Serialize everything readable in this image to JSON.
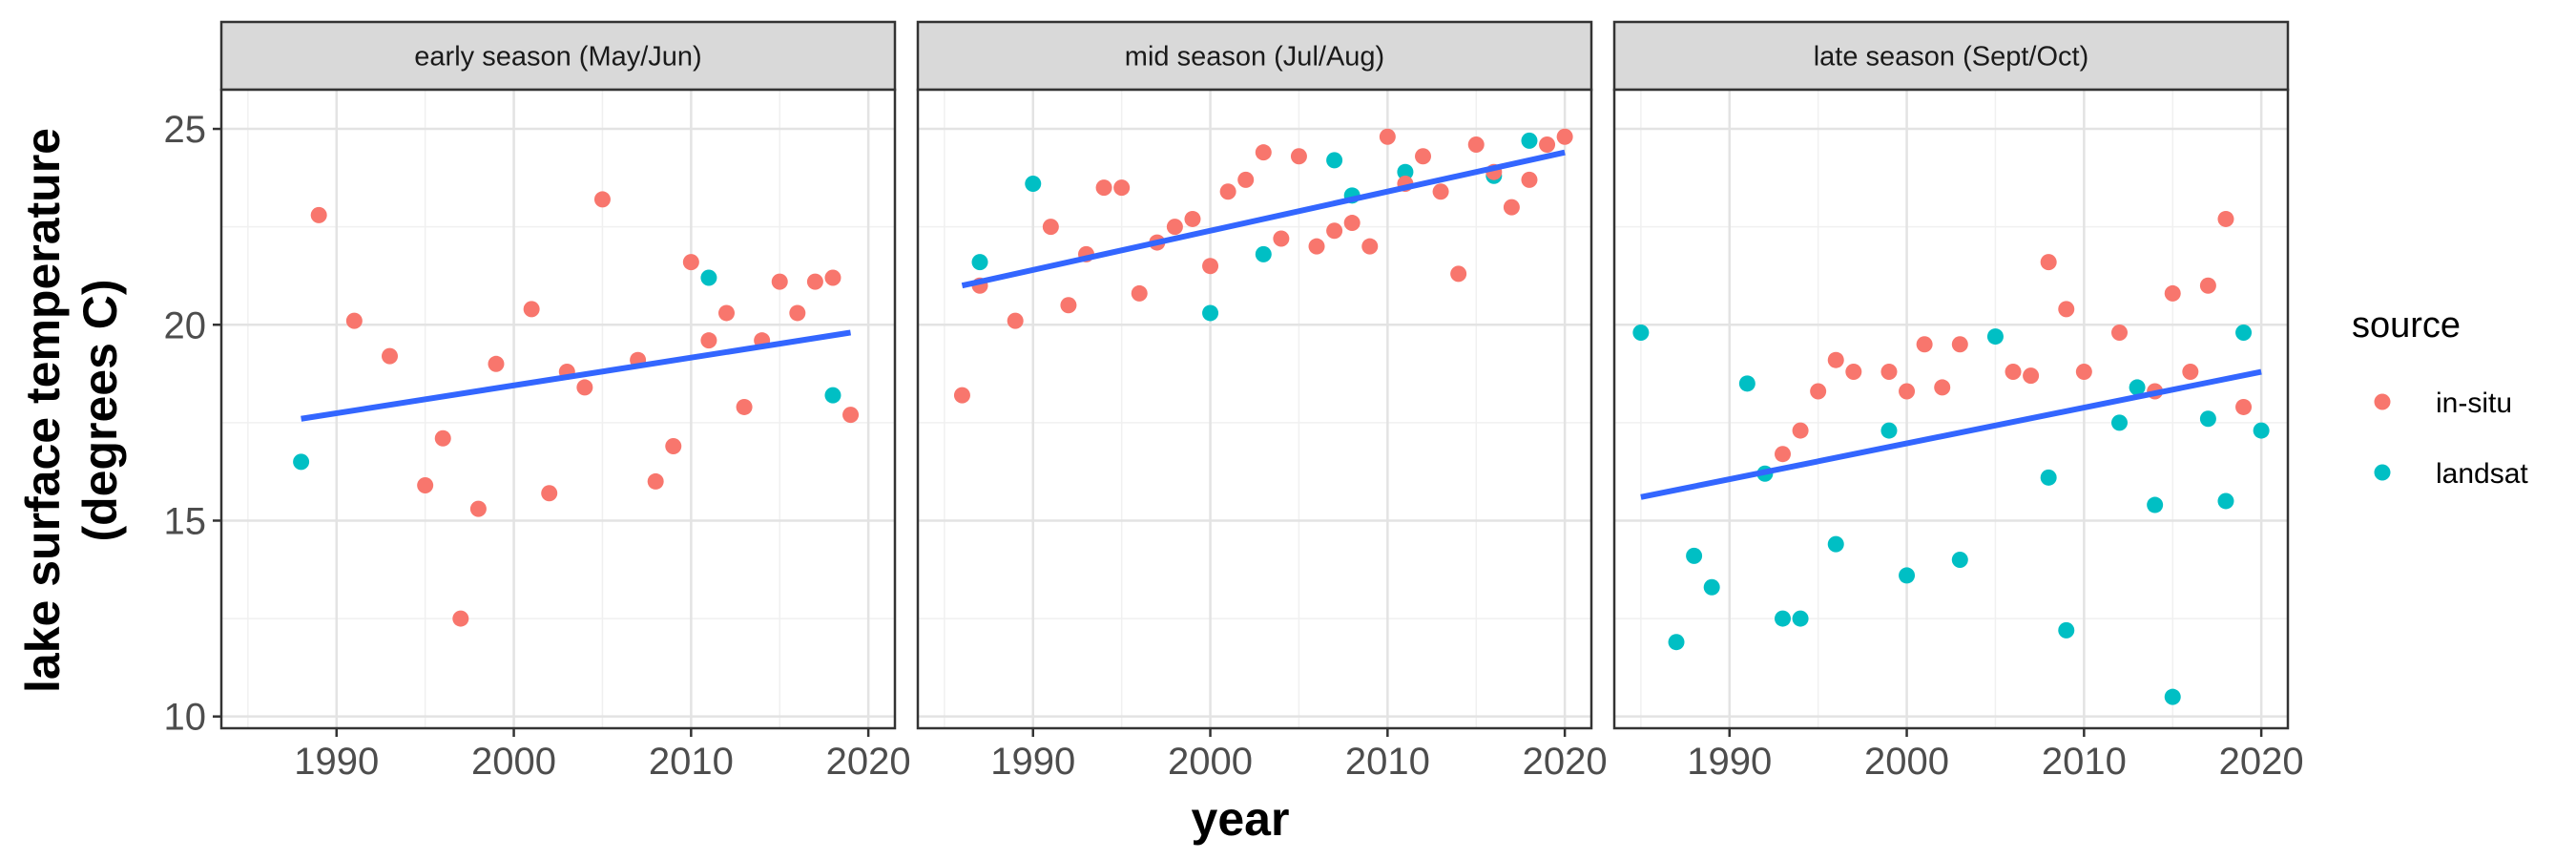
{
  "chart_data": {
    "type": "scatter",
    "xlabel": "year",
    "ylabel": [
      "lake surface temperature",
      "(degrees C)"
    ],
    "xlim": [
      1983.5,
      2021.5
    ],
    "ylim": [
      9.7,
      26.0
    ],
    "x_ticks": [
      1990,
      2000,
      2010,
      2020
    ],
    "y_ticks": [
      10,
      15,
      20,
      25
    ],
    "grid": true,
    "legend_position": "right",
    "legend": {
      "title": "source",
      "entries": [
        {
          "name": "in-situ",
          "color": "#F8766D"
        },
        {
          "name": "landsat",
          "color": "#00BFC4"
        }
      ]
    },
    "trend_color": "#3366FF",
    "panels": [
      {
        "title": "early season (May/Jun)",
        "trend": {
          "x": [
            1988,
            2019
          ],
          "y": [
            17.6,
            19.8
          ]
        },
        "points": [
          {
            "x": 1988,
            "y": 16.5,
            "source": "landsat"
          },
          {
            "x": 1989,
            "y": 22.8,
            "source": "in-situ"
          },
          {
            "x": 1991,
            "y": 20.1,
            "source": "in-situ"
          },
          {
            "x": 1993,
            "y": 19.2,
            "source": "in-situ"
          },
          {
            "x": 1995,
            "y": 15.9,
            "source": "in-situ"
          },
          {
            "x": 1996,
            "y": 17.1,
            "source": "in-situ"
          },
          {
            "x": 1997,
            "y": 12.5,
            "source": "in-situ"
          },
          {
            "x": 1998,
            "y": 15.3,
            "source": "in-situ"
          },
          {
            "x": 1999,
            "y": 19.0,
            "source": "in-situ"
          },
          {
            "x": 2001,
            "y": 20.4,
            "source": "in-situ"
          },
          {
            "x": 2002,
            "y": 15.7,
            "source": "in-situ"
          },
          {
            "x": 2003,
            "y": 18.8,
            "source": "in-situ"
          },
          {
            "x": 2004,
            "y": 18.4,
            "source": "in-situ"
          },
          {
            "x": 2005,
            "y": 23.2,
            "source": "in-situ"
          },
          {
            "x": 2007,
            "y": 19.1,
            "source": "in-situ"
          },
          {
            "x": 2008,
            "y": 16.0,
            "source": "in-situ"
          },
          {
            "x": 2009,
            "y": 16.9,
            "source": "in-situ"
          },
          {
            "x": 2010,
            "y": 21.6,
            "source": "in-situ"
          },
          {
            "x": 2011,
            "y": 21.2,
            "source": "landsat"
          },
          {
            "x": 2011,
            "y": 19.6,
            "source": "in-situ"
          },
          {
            "x": 2012,
            "y": 20.3,
            "source": "in-situ"
          },
          {
            "x": 2013,
            "y": 17.9,
            "source": "in-situ"
          },
          {
            "x": 2014,
            "y": 19.6,
            "source": "in-situ"
          },
          {
            "x": 2015,
            "y": 21.1,
            "source": "in-situ"
          },
          {
            "x": 2016,
            "y": 20.3,
            "source": "in-situ"
          },
          {
            "x": 2017,
            "y": 21.1,
            "source": "in-situ"
          },
          {
            "x": 2018,
            "y": 21.2,
            "source": "in-situ"
          },
          {
            "x": 2018,
            "y": 18.2,
            "source": "landsat"
          },
          {
            "x": 2019,
            "y": 17.7,
            "source": "in-situ"
          }
        ]
      },
      {
        "title": "mid season (Jul/Aug)",
        "trend": {
          "x": [
            1986,
            2020
          ],
          "y": [
            21.0,
            24.4
          ]
        },
        "points": [
          {
            "x": 1986,
            "y": 18.2,
            "source": "in-situ"
          },
          {
            "x": 1987,
            "y": 21.6,
            "source": "landsat"
          },
          {
            "x": 1987,
            "y": 21.0,
            "source": "in-situ"
          },
          {
            "x": 1989,
            "y": 20.1,
            "source": "in-situ"
          },
          {
            "x": 1990,
            "y": 23.6,
            "source": "landsat"
          },
          {
            "x": 1991,
            "y": 22.5,
            "source": "in-situ"
          },
          {
            "x": 1992,
            "y": 20.5,
            "source": "in-situ"
          },
          {
            "x": 1993,
            "y": 21.8,
            "source": "in-situ"
          },
          {
            "x": 1994,
            "y": 23.5,
            "source": "in-situ"
          },
          {
            "x": 1995,
            "y": 23.5,
            "source": "in-situ"
          },
          {
            "x": 1996,
            "y": 20.8,
            "source": "in-situ"
          },
          {
            "x": 1997,
            "y": 22.1,
            "source": "in-situ"
          },
          {
            "x": 1998,
            "y": 22.5,
            "source": "in-situ"
          },
          {
            "x": 1999,
            "y": 22.7,
            "source": "in-situ"
          },
          {
            "x": 2000,
            "y": 21.5,
            "source": "in-situ"
          },
          {
            "x": 2000,
            "y": 20.3,
            "source": "landsat"
          },
          {
            "x": 2001,
            "y": 23.4,
            "source": "in-situ"
          },
          {
            "x": 2002,
            "y": 23.7,
            "source": "in-situ"
          },
          {
            "x": 2003,
            "y": 24.4,
            "source": "in-situ"
          },
          {
            "x": 2003,
            "y": 21.8,
            "source": "landsat"
          },
          {
            "x": 2004,
            "y": 22.2,
            "source": "in-situ"
          },
          {
            "x": 2005,
            "y": 24.3,
            "source": "in-situ"
          },
          {
            "x": 2006,
            "y": 22.0,
            "source": "in-situ"
          },
          {
            "x": 2007,
            "y": 24.2,
            "source": "landsat"
          },
          {
            "x": 2007,
            "y": 22.4,
            "source": "in-situ"
          },
          {
            "x": 2008,
            "y": 23.3,
            "source": "landsat"
          },
          {
            "x": 2008,
            "y": 22.6,
            "source": "in-situ"
          },
          {
            "x": 2009,
            "y": 22.0,
            "source": "in-situ"
          },
          {
            "x": 2010,
            "y": 24.8,
            "source": "in-situ"
          },
          {
            "x": 2011,
            "y": 23.9,
            "source": "landsat"
          },
          {
            "x": 2011,
            "y": 23.6,
            "source": "in-situ"
          },
          {
            "x": 2012,
            "y": 24.3,
            "source": "in-situ"
          },
          {
            "x": 2013,
            "y": 23.4,
            "source": "in-situ"
          },
          {
            "x": 2014,
            "y": 21.3,
            "source": "in-situ"
          },
          {
            "x": 2015,
            "y": 24.6,
            "source": "in-situ"
          },
          {
            "x": 2016,
            "y": 23.8,
            "source": "landsat"
          },
          {
            "x": 2016,
            "y": 23.9,
            "source": "in-situ"
          },
          {
            "x": 2017,
            "y": 23.0,
            "source": "in-situ"
          },
          {
            "x": 2018,
            "y": 24.7,
            "source": "landsat"
          },
          {
            "x": 2018,
            "y": 23.7,
            "source": "in-situ"
          },
          {
            "x": 2019,
            "y": 24.6,
            "source": "in-situ"
          },
          {
            "x": 2020,
            "y": 24.8,
            "source": "in-situ"
          }
        ]
      },
      {
        "title": "late season (Sept/Oct)",
        "trend": {
          "x": [
            1985,
            2020
          ],
          "y": [
            15.6,
            18.8
          ]
        },
        "points": [
          {
            "x": 1985,
            "y": 19.8,
            "source": "landsat"
          },
          {
            "x": 1987,
            "y": 11.9,
            "source": "landsat"
          },
          {
            "x": 1988,
            "y": 14.1,
            "source": "landsat"
          },
          {
            "x": 1989,
            "y": 13.3,
            "source": "landsat"
          },
          {
            "x": 1991,
            "y": 18.5,
            "source": "landsat"
          },
          {
            "x": 1992,
            "y": 16.2,
            "source": "landsat"
          },
          {
            "x": 1993,
            "y": 16.7,
            "source": "in-situ"
          },
          {
            "x": 1993,
            "y": 12.5,
            "source": "landsat"
          },
          {
            "x": 1994,
            "y": 17.3,
            "source": "in-situ"
          },
          {
            "x": 1994,
            "y": 12.5,
            "source": "landsat"
          },
          {
            "x": 1995,
            "y": 18.3,
            "source": "in-situ"
          },
          {
            "x": 1996,
            "y": 19.1,
            "source": "in-situ"
          },
          {
            "x": 1996,
            "y": 14.4,
            "source": "landsat"
          },
          {
            "x": 1997,
            "y": 18.8,
            "source": "in-situ"
          },
          {
            "x": 1999,
            "y": 18.8,
            "source": "in-situ"
          },
          {
            "x": 1999,
            "y": 17.3,
            "source": "landsat"
          },
          {
            "x": 2000,
            "y": 18.3,
            "source": "in-situ"
          },
          {
            "x": 2000,
            "y": 13.6,
            "source": "landsat"
          },
          {
            "x": 2001,
            "y": 19.5,
            "source": "in-situ"
          },
          {
            "x": 2002,
            "y": 18.4,
            "source": "in-situ"
          },
          {
            "x": 2003,
            "y": 19.5,
            "source": "in-situ"
          },
          {
            "x": 2003,
            "y": 14.0,
            "source": "landsat"
          },
          {
            "x": 2005,
            "y": 19.7,
            "source": "landsat"
          },
          {
            "x": 2006,
            "y": 18.8,
            "source": "in-situ"
          },
          {
            "x": 2007,
            "y": 18.7,
            "source": "in-situ"
          },
          {
            "x": 2008,
            "y": 21.6,
            "source": "in-situ"
          },
          {
            "x": 2008,
            "y": 16.1,
            "source": "landsat"
          },
          {
            "x": 2009,
            "y": 20.4,
            "source": "in-situ"
          },
          {
            "x": 2009,
            "y": 12.2,
            "source": "landsat"
          },
          {
            "x": 2010,
            "y": 18.8,
            "source": "in-situ"
          },
          {
            "x": 2012,
            "y": 19.8,
            "source": "in-situ"
          },
          {
            "x": 2012,
            "y": 17.5,
            "source": "landsat"
          },
          {
            "x": 2013,
            "y": 18.4,
            "source": "landsat"
          },
          {
            "x": 2014,
            "y": 18.3,
            "source": "in-situ"
          },
          {
            "x": 2014,
            "y": 15.4,
            "source": "landsat"
          },
          {
            "x": 2015,
            "y": 20.8,
            "source": "in-situ"
          },
          {
            "x": 2015,
            "y": 10.5,
            "source": "landsat"
          },
          {
            "x": 2016,
            "y": 18.8,
            "source": "in-situ"
          },
          {
            "x": 2017,
            "y": 21.0,
            "source": "in-situ"
          },
          {
            "x": 2017,
            "y": 17.6,
            "source": "landsat"
          },
          {
            "x": 2018,
            "y": 22.7,
            "source": "in-situ"
          },
          {
            "x": 2018,
            "y": 15.5,
            "source": "landsat"
          },
          {
            "x": 2019,
            "y": 19.8,
            "source": "landsat"
          },
          {
            "x": 2019,
            "y": 17.9,
            "source": "in-situ"
          },
          {
            "x": 2020,
            "y": 17.3,
            "source": "landsat"
          }
        ]
      }
    ]
  }
}
